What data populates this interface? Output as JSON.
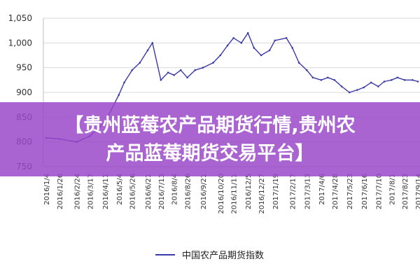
{
  "chart_data": {
    "type": "line",
    "title": "",
    "xlabel": "",
    "ylabel": "",
    "ylim": [
      750,
      1050
    ],
    "yticks": [
      750,
      800,
      850,
      900,
      950,
      1000,
      1050
    ],
    "ytick_labels": [
      "750",
      "800",
      "850",
      "900",
      "950",
      "1,000",
      "1,050"
    ],
    "grid": "horizontal",
    "legend_position": "bottom",
    "x_tick_labels": [
      "2016/1/4",
      "2016/1/26",
      "2016/2/24",
      "2016/3/17",
      "2016/4/11",
      "2016/5/4",
      "2016/5/26",
      "2016/6/21",
      "2016/7/13",
      "2016/8/4",
      "2016/8/26",
      "2016/9/21",
      "2016/10/20",
      "2016/11/11",
      "2016/12/5",
      "2016/12/27",
      "2017/1/19",
      "2017/2/17",
      "2017/3/13",
      "2017/4/6",
      "2017/4/28",
      "2017/5/23",
      "2017/6/16",
      "2017/7/10",
      "2017/8/1",
      "2017/8/23",
      "2017/9/14"
    ],
    "x": [
      "2016/1/4",
      "2016/1/26",
      "2016/2/24",
      "2016/3/17",
      "2016/4/11",
      "2016/5/4",
      "2016/5/13",
      "2016/5/26",
      "2016/6/8",
      "2016/6/21",
      "2016/6/29",
      "2016/7/13",
      "2016/7/25",
      "2016/8/4",
      "2016/8/15",
      "2016/8/26",
      "2016/9/8",
      "2016/9/21",
      "2016/10/8",
      "2016/10/20",
      "2016/11/1",
      "2016/11/11",
      "2016/11/24",
      "2016/12/5",
      "2016/12/15",
      "2016/12/27",
      "2017/1/10",
      "2017/1/19",
      "2017/2/7",
      "2017/2/17",
      "2017/2/28",
      "2017/3/13",
      "2017/3/23",
      "2017/4/6",
      "2017/4/17",
      "2017/4/28",
      "2017/5/10",
      "2017/5/23",
      "2017/6/5",
      "2017/6/16",
      "2017/6/28",
      "2017/7/10",
      "2017/7/20",
      "2017/8/1",
      "2017/8/11",
      "2017/8/23",
      "2017/9/5",
      "2017/9/14"
    ],
    "series": [
      {
        "name": "中国农产品期货指数",
        "color": "#3a3aa8",
        "values": [
          808,
          806,
          800,
          812,
          840,
          895,
          920,
          945,
          960,
          985,
          1000,
          925,
          940,
          935,
          945,
          930,
          945,
          950,
          960,
          975,
          995,
          1010,
          1000,
          1020,
          990,
          975,
          985,
          1005,
          1010,
          990,
          960,
          945,
          930,
          925,
          930,
          925,
          912,
          900,
          905,
          910,
          920,
          912,
          922,
          925,
          930,
          925,
          925,
          922
        ]
      }
    ]
  },
  "banner": {
    "line1": "【贵州蓝莓农产品期货行情,贵州农",
    "line2": "产品蓝莓期货交易平台】",
    "background": "#9a46c8"
  }
}
